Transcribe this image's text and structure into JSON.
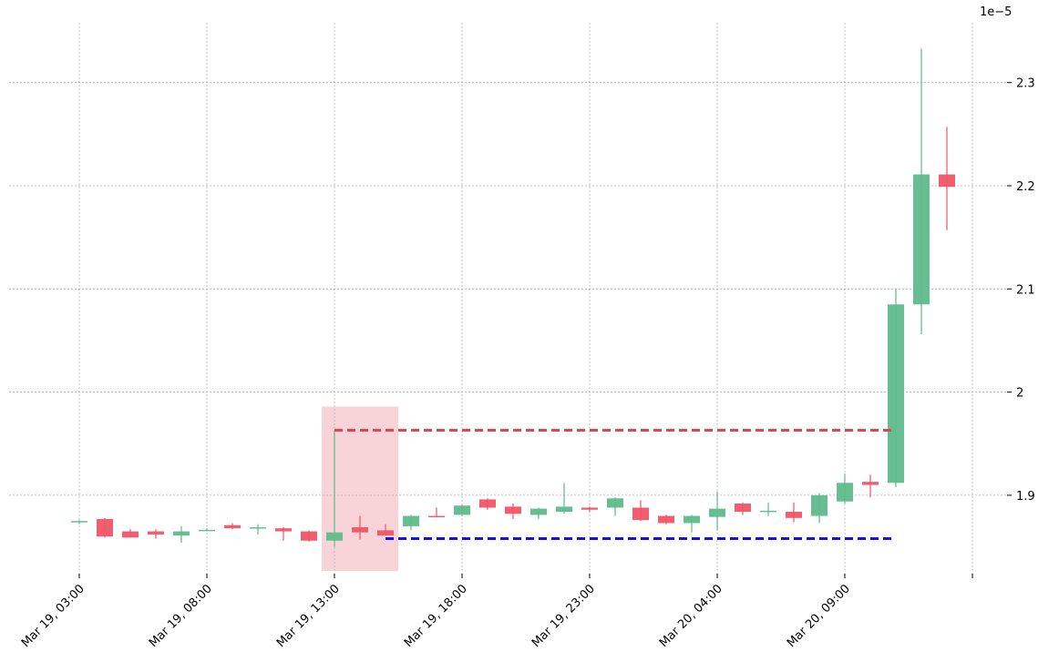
{
  "chart_data": {
    "type": "candlestick",
    "y_offset_label": "1e−5",
    "categories": [
      "Mar 19, 03:00",
      null,
      null,
      null,
      null,
      "Mar 19, 08:00",
      null,
      null,
      null,
      null,
      "Mar 19, 13:00",
      null,
      null,
      null,
      null,
      "Mar 19, 18:00",
      null,
      null,
      null,
      null,
      "Mar 19, 23:00",
      null,
      null,
      null,
      null,
      "Mar 20, 04:00",
      null,
      null,
      null,
      null,
      "Mar 20, 09:00",
      null,
      null,
      null,
      null,
      null
    ],
    "open": [
      1.874,
      1.877,
      1.865,
      1.865,
      1.861,
      1.866,
      1.871,
      1.868,
      1.868,
      1.865,
      1.856,
      1.869,
      1.866,
      1.87,
      1.88,
      1.881,
      1.896,
      1.889,
      1.881,
      1.884,
      1.888,
      1.888,
      1.888,
      1.88,
      1.873,
      1.879,
      1.892,
      1.884,
      1.884,
      1.88,
      1.894,
      1.913,
      1.912,
      2.085,
      2.211,
      null
    ],
    "high": [
      1.876,
      1.878,
      1.867,
      1.867,
      1.87,
      1.868,
      1.873,
      1.872,
      1.869,
      1.866,
      1.963,
      1.88,
      1.872,
      1.881,
      1.888,
      1.891,
      1.897,
      1.892,
      1.888,
      1.912,
      1.889,
      1.898,
      1.895,
      1.881,
      1.881,
      1.904,
      1.893,
      1.893,
      1.893,
      1.902,
      1.921,
      1.92,
      2.1,
      2.333,
      2.257,
      null
    ],
    "low": [
      1.872,
      1.859,
      1.859,
      1.858,
      1.854,
      1.865,
      1.867,
      1.862,
      1.856,
      1.855,
      1.85,
      1.857,
      1.861,
      1.866,
      1.879,
      1.88,
      1.886,
      1.877,
      1.877,
      1.882,
      1.884,
      1.88,
      1.875,
      1.872,
      1.864,
      1.866,
      1.881,
      1.88,
      1.874,
      1.873,
      1.892,
      1.898,
      1.908,
      2.056,
      2.157,
      null
    ],
    "close": [
      1.875,
      1.86,
      1.859,
      1.862,
      1.865,
      1.8665,
      1.868,
      1.869,
      1.865,
      1.856,
      1.864,
      1.864,
      1.861,
      1.88,
      1.879,
      1.89,
      1.888,
      1.882,
      1.887,
      1.889,
      1.886,
      1.897,
      1.876,
      1.873,
      1.88,
      1.887,
      1.884,
      1.885,
      1.878,
      1.9,
      1.912,
      1.91,
      2.085,
      2.211,
      2.199,
      null
    ],
    "up_color": "#5fbb8c",
    "down_color": "#ef5567",
    "ylim": [
      1.824,
      2.358
    ],
    "yticks": [
      1.9,
      2.0,
      2.1,
      2.2,
      2.3
    ],
    "grid": true,
    "highlight": {
      "start": 10,
      "end": 12,
      "top": 1.986,
      "color": "#f8d3d8"
    },
    "resistance": {
      "value": 1.963,
      "start": 10,
      "end": 32,
      "color": "#e8414f"
    },
    "support": {
      "value": 1.858,
      "start": 12,
      "end": 32,
      "color": "#1212e8"
    }
  }
}
